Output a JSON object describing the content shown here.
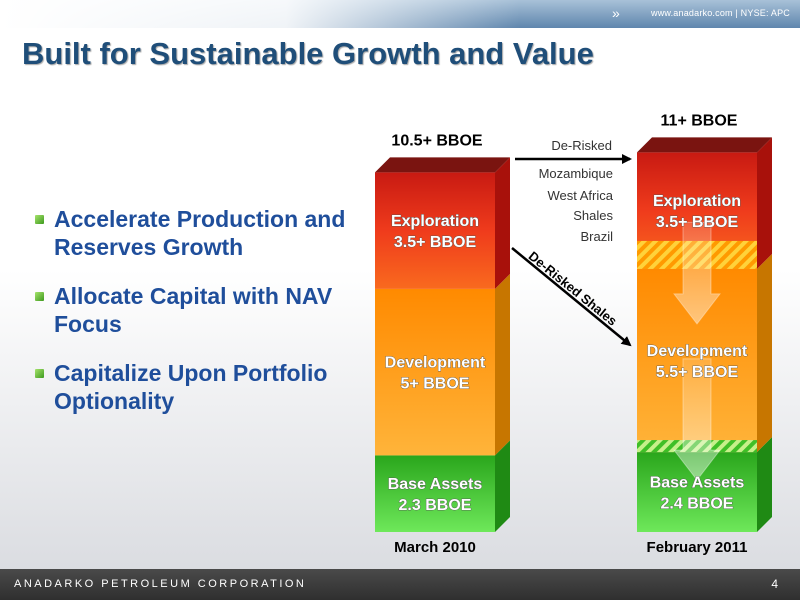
{
  "header": {
    "site_text": "www.anadarko.com | NYSE: APC",
    "title": "Built for Sustainable Growth and Value"
  },
  "bullets": [
    "Accelerate Production and Reserves Growth",
    "Allocate Capital with NAV Focus",
    "Capitalize Upon Portfolio Optionality"
  ],
  "footer": {
    "company": "ANADARKO PETROLEUM CORPORATION",
    "page_number": "4"
  },
  "colors": {
    "title": "#1f4e79",
    "bullet_text": "#1f4e9b",
    "exploration": "#e8251b",
    "development": "#ff9a00",
    "base_assets": "#3fbf27"
  },
  "chart_data": {
    "type": "bar",
    "stacked": true,
    "categories": [
      "March 2010",
      "February 2011"
    ],
    "totals": [
      "10.5+ BBOE",
      "11+ BBOE"
    ],
    "series": [
      {
        "name": "Base Assets",
        "values": [
          2.3,
          2.4
        ],
        "labels": [
          "Base Assets\n2.3 BBOE",
          "Base Assets\n2.4 BBOE"
        ]
      },
      {
        "name": "Development",
        "values": [
          5,
          5.5
        ],
        "labels": [
          "Development\n5+ BBOE",
          "Development\n5.5+ BBOE"
        ]
      },
      {
        "name": "Exploration",
        "values": [
          3.5,
          3.5
        ],
        "labels": [
          "Exploration\n3.5+ BBOE",
          "Exploration\n3.5+ BBOE"
        ]
      }
    ],
    "annotations": {
      "derisked_list": [
        "De-Risked",
        "Mozambique",
        "West Africa",
        "Shales",
        "Brazil"
      ],
      "derisked_shales": "De-Risked Shales"
    }
  }
}
